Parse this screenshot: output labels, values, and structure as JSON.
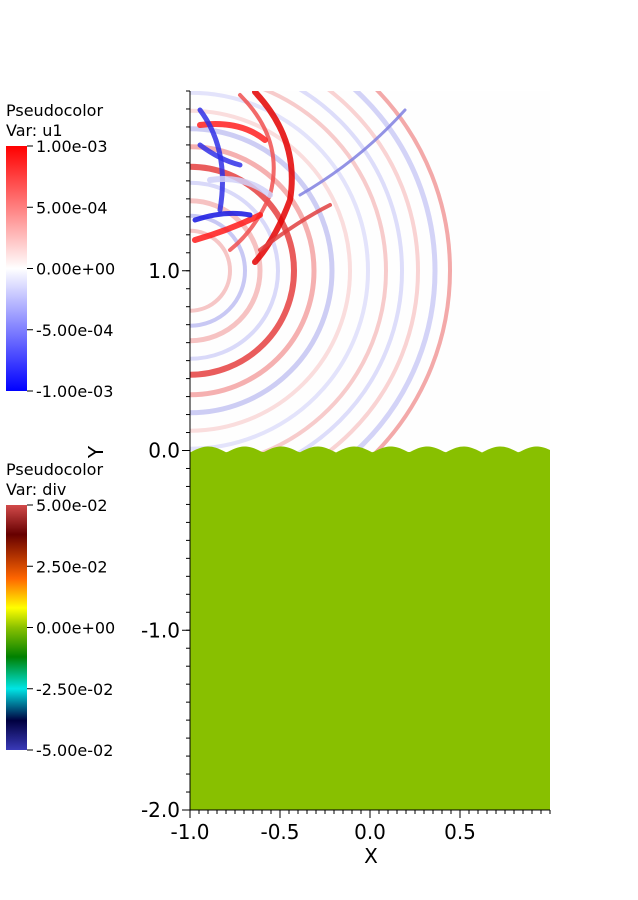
{
  "chart_data": {
    "type": "heatmap",
    "xlabel": "X",
    "ylabel": "Y",
    "xlim": [
      -1.0,
      1.0
    ],
    "ylim": [
      -2.0,
      2.0
    ],
    "x_ticks": [
      {
        "value": -1.0,
        "label": "-1.0"
      },
      {
        "value": -0.5,
        "label": "-0.5"
      },
      {
        "value": 0.0,
        "label": "0.0"
      },
      {
        "value": 0.5,
        "label": "0.5"
      }
    ],
    "y_ticks": [
      {
        "value": -2.0,
        "label": "-2.0"
      },
      {
        "value": -1.0,
        "label": "-1.0"
      },
      {
        "value": 0.0,
        "label": "0.0"
      },
      {
        "value": 1.0,
        "label": "1.0"
      }
    ],
    "layers": [
      {
        "name": "u1",
        "plot": "Pseudocolor",
        "legend_title": "Pseudocolor",
        "legend_var": "Var: u1",
        "range": [
          -0.001,
          0.001
        ],
        "colormap": [
          "#0000ff",
          "#ffffff",
          "#ff0000"
        ],
        "ticks": [
          "1.00e-03",
          "5.00e-04",
          "0.00e+00",
          "-5.00e-04",
          "-1.00e-03"
        ],
        "region": "upper half (y > 0): circular wave fronts centred near x = -1.0, y = 1.0"
      },
      {
        "name": "div",
        "plot": "Pseudocolor",
        "legend_title": "Pseudocolor",
        "legend_var": "Var: div",
        "range": [
          -0.05,
          0.05
        ],
        "colormap": [
          "#3a3ab8",
          "#000040",
          "#00e5e5",
          "#008000",
          "#8ac100",
          "#ffff00",
          "#ff6600",
          "#660000",
          "#d24a4a"
        ],
        "ticks": [
          "5.00e-02",
          "2.50e-02",
          "0.00e+00",
          "-2.50e-02",
          "-5.00e-02"
        ],
        "fill_color": "#88c000",
        "uniform_value": 0.0,
        "region": "lower half (y < 0) with a wavy top interface near y = 0"
      }
    ]
  }
}
